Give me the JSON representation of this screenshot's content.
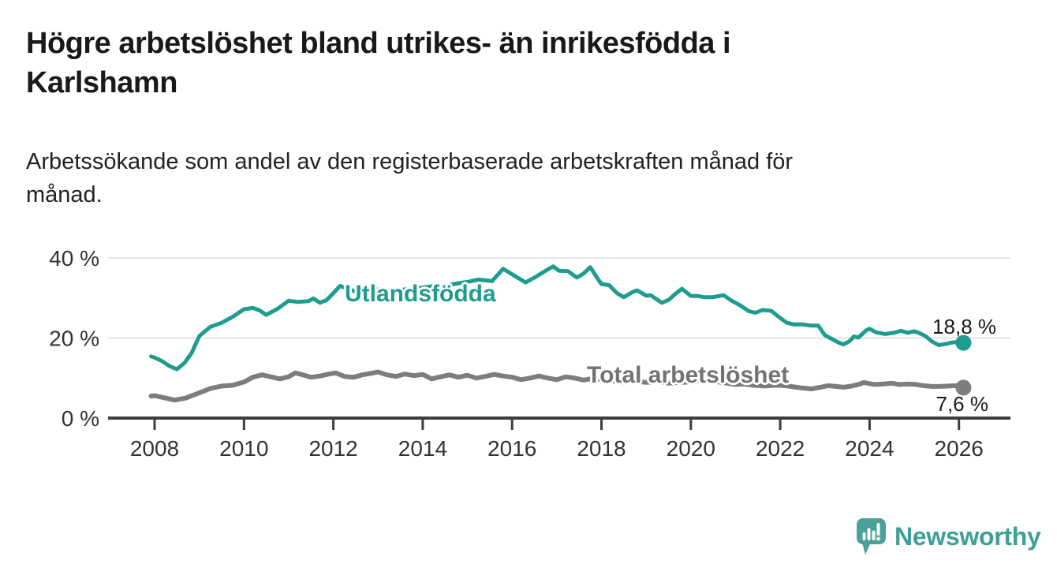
{
  "header": {
    "title_lines": [
      "Högre arbetslöshet bland utrikes- än inrikesfödda i",
      "Karlshamn"
    ],
    "subtitle_lines": [
      "Arbetssökande som andel av den registerbaserade arbetskraften månad för",
      "månad."
    ]
  },
  "chart_data": {
    "type": "line",
    "title": "Högre arbetslöshet bland utrikes- än inrikesfödda i Karlshamn",
    "subtitle": "Arbetssökande som andel av den registerbaserade arbetskraften månad för månad.",
    "x_unit": "year (monthly series)",
    "x_range": [
      2008,
      2026.1
    ],
    "ylim": [
      0,
      40
    ],
    "grid": "horizontal",
    "legend_position": "inline-labels",
    "x_ticks": [
      2008,
      2010,
      2012,
      2014,
      2016,
      2018,
      2020,
      2022,
      2024,
      2026
    ],
    "y_ticks": [
      {
        "value": 0,
        "label": "0 %"
      },
      {
        "value": 20,
        "label": "20 %"
      },
      {
        "value": 40,
        "label": "40 %"
      }
    ],
    "series": [
      {
        "name": "Utlandsfödda",
        "color": "#1d9c8f",
        "end_label": "18,8 %",
        "end_value": 18.8,
        "points": [
          [
            2007.92,
            15.4
          ],
          [
            2008.0,
            15.1
          ],
          [
            2008.17,
            14.2
          ],
          [
            2008.33,
            13.0
          ],
          [
            2008.5,
            12.2
          ],
          [
            2008.67,
            13.8
          ],
          [
            2008.83,
            16.3
          ],
          [
            2009.0,
            20.5
          ],
          [
            2009.25,
            22.8
          ],
          [
            2009.5,
            23.8
          ],
          [
            2009.75,
            25.3
          ],
          [
            2010.0,
            27.2
          ],
          [
            2010.2,
            27.5
          ],
          [
            2010.35,
            26.9
          ],
          [
            2010.5,
            25.8
          ],
          [
            2010.75,
            27.3
          ],
          [
            2011.0,
            29.3
          ],
          [
            2011.2,
            29.0
          ],
          [
            2011.45,
            29.2
          ],
          [
            2011.55,
            29.9
          ],
          [
            2011.7,
            28.8
          ],
          [
            2011.85,
            29.5
          ],
          [
            2012.0,
            31.2
          ],
          [
            2012.15,
            33.0
          ],
          [
            2012.3,
            32.4
          ],
          [
            2012.5,
            31.6
          ],
          [
            2012.75,
            31.9
          ],
          [
            2013.0,
            32.1
          ],
          [
            2013.25,
            31.6
          ],
          [
            2013.5,
            32.0
          ],
          [
            2013.75,
            32.3
          ],
          [
            2014.0,
            32.6
          ],
          [
            2014.25,
            33.0
          ],
          [
            2014.5,
            33.0
          ],
          [
            2014.75,
            33.6
          ],
          [
            2015.0,
            34.0
          ],
          [
            2015.25,
            34.6
          ],
          [
            2015.55,
            34.2
          ],
          [
            2015.8,
            37.3
          ],
          [
            2016.0,
            35.9
          ],
          [
            2016.3,
            33.9
          ],
          [
            2016.5,
            35.1
          ],
          [
            2016.75,
            36.8
          ],
          [
            2016.92,
            37.9
          ],
          [
            2017.05,
            36.8
          ],
          [
            2017.25,
            36.7
          ],
          [
            2017.45,
            35.1
          ],
          [
            2017.6,
            36.1
          ],
          [
            2017.75,
            37.7
          ],
          [
            2017.9,
            35.1
          ],
          [
            2018.0,
            33.5
          ],
          [
            2018.17,
            33.2
          ],
          [
            2018.35,
            31.2
          ],
          [
            2018.5,
            30.2
          ],
          [
            2018.7,
            31.5
          ],
          [
            2018.8,
            31.9
          ],
          [
            2019.0,
            30.6
          ],
          [
            2019.1,
            30.7
          ],
          [
            2019.35,
            28.8
          ],
          [
            2019.5,
            29.5
          ],
          [
            2019.65,
            31.0
          ],
          [
            2019.8,
            32.3
          ],
          [
            2020.0,
            30.5
          ],
          [
            2020.15,
            30.5
          ],
          [
            2020.3,
            30.2
          ],
          [
            2020.5,
            30.2
          ],
          [
            2020.73,
            30.7
          ],
          [
            2020.9,
            29.4
          ],
          [
            2021.1,
            28.2
          ],
          [
            2021.3,
            26.7
          ],
          [
            2021.45,
            26.3
          ],
          [
            2021.6,
            27.0
          ],
          [
            2021.8,
            26.8
          ],
          [
            2021.9,
            25.9
          ],
          [
            2022.0,
            25.0
          ],
          [
            2022.15,
            23.8
          ],
          [
            2022.3,
            23.4
          ],
          [
            2022.5,
            23.4
          ],
          [
            2022.7,
            23.1
          ],
          [
            2022.85,
            23.1
          ],
          [
            2023.0,
            20.7
          ],
          [
            2023.15,
            19.8
          ],
          [
            2023.3,
            18.9
          ],
          [
            2023.42,
            18.4
          ],
          [
            2023.55,
            19.2
          ],
          [
            2023.65,
            20.4
          ],
          [
            2023.75,
            20.1
          ],
          [
            2023.93,
            22.0
          ],
          [
            2024.0,
            22.3
          ],
          [
            2024.15,
            21.4
          ],
          [
            2024.35,
            21.0
          ],
          [
            2024.55,
            21.3
          ],
          [
            2024.7,
            21.8
          ],
          [
            2024.85,
            21.3
          ],
          [
            2025.0,
            21.7
          ],
          [
            2025.1,
            21.3
          ],
          [
            2025.25,
            20.5
          ],
          [
            2025.4,
            19.1
          ],
          [
            2025.55,
            18.2
          ],
          [
            2025.7,
            18.5
          ],
          [
            2025.85,
            18.9
          ],
          [
            2026.0,
            19.0
          ],
          [
            2026.1,
            18.8
          ]
        ]
      },
      {
        "name": "Total arbetslöshet",
        "color": "#7d7d7d",
        "end_label": "7,6 %",
        "end_value": 7.6,
        "points": [
          [
            2007.92,
            5.5
          ],
          [
            2008.0,
            5.6
          ],
          [
            2008.2,
            5.1
          ],
          [
            2008.45,
            4.5
          ],
          [
            2008.7,
            5.0
          ],
          [
            2009.0,
            6.3
          ],
          [
            2009.25,
            7.4
          ],
          [
            2009.5,
            8.0
          ],
          [
            2009.75,
            8.2
          ],
          [
            2010.0,
            9.0
          ],
          [
            2010.2,
            10.2
          ],
          [
            2010.4,
            10.8
          ],
          [
            2010.6,
            10.3
          ],
          [
            2010.8,
            9.8
          ],
          [
            2011.0,
            10.3
          ],
          [
            2011.15,
            11.3
          ],
          [
            2011.35,
            10.7
          ],
          [
            2011.5,
            10.2
          ],
          [
            2011.7,
            10.5
          ],
          [
            2011.9,
            11.0
          ],
          [
            2012.05,
            11.3
          ],
          [
            2012.25,
            10.4
          ],
          [
            2012.45,
            10.2
          ],
          [
            2012.65,
            10.8
          ],
          [
            2012.85,
            11.2
          ],
          [
            2013.0,
            11.5
          ],
          [
            2013.2,
            10.8
          ],
          [
            2013.4,
            10.4
          ],
          [
            2013.6,
            11.0
          ],
          [
            2013.8,
            10.6
          ],
          [
            2014.0,
            10.9
          ],
          [
            2014.2,
            9.8
          ],
          [
            2014.4,
            10.3
          ],
          [
            2014.6,
            10.8
          ],
          [
            2014.8,
            10.2
          ],
          [
            2015.0,
            10.7
          ],
          [
            2015.2,
            10.0
          ],
          [
            2015.4,
            10.4
          ],
          [
            2015.6,
            10.9
          ],
          [
            2015.8,
            10.5
          ],
          [
            2016.0,
            10.2
          ],
          [
            2016.2,
            9.6
          ],
          [
            2016.4,
            10.0
          ],
          [
            2016.6,
            10.5
          ],
          [
            2016.8,
            10.0
          ],
          [
            2017.0,
            9.6
          ],
          [
            2017.2,
            10.3
          ],
          [
            2017.4,
            10.0
          ],
          [
            2017.6,
            9.5
          ],
          [
            2017.8,
            9.9
          ],
          [
            2018.0,
            9.6
          ],
          [
            2018.25,
            9.3
          ],
          [
            2018.5,
            9.0
          ],
          [
            2018.75,
            9.2
          ],
          [
            2019.0,
            8.9
          ],
          [
            2019.25,
            9.1
          ],
          [
            2019.5,
            8.7
          ],
          [
            2019.75,
            8.9
          ],
          [
            2020.0,
            9.0
          ],
          [
            2020.25,
            9.5
          ],
          [
            2020.5,
            9.2
          ],
          [
            2020.75,
            8.8
          ],
          [
            2021.0,
            8.4
          ],
          [
            2021.2,
            8.5
          ],
          [
            2021.4,
            8.2
          ],
          [
            2021.65,
            8.0
          ],
          [
            2021.9,
            8.2
          ],
          [
            2022.1,
            8.1
          ],
          [
            2022.3,
            7.8
          ],
          [
            2022.5,
            7.5
          ],
          [
            2022.7,
            7.3
          ],
          [
            2022.9,
            7.7
          ],
          [
            2023.07,
            8.1
          ],
          [
            2023.25,
            7.9
          ],
          [
            2023.42,
            7.7
          ],
          [
            2023.6,
            8.0
          ],
          [
            2023.78,
            8.5
          ],
          [
            2023.87,
            8.9
          ],
          [
            2023.95,
            8.7
          ],
          [
            2024.1,
            8.4
          ],
          [
            2024.3,
            8.5
          ],
          [
            2024.5,
            8.7
          ],
          [
            2024.66,
            8.4
          ],
          [
            2024.85,
            8.5
          ],
          [
            2025.05,
            8.4
          ],
          [
            2025.2,
            8.1
          ],
          [
            2025.4,
            7.9
          ],
          [
            2025.55,
            7.9
          ],
          [
            2025.75,
            8.0
          ],
          [
            2025.95,
            8.1
          ],
          [
            2026.1,
            7.6
          ]
        ]
      }
    ]
  },
  "branding": {
    "name": "Newsworthy",
    "color": "#3d9f96",
    "icon": "newsworthy-speech-bubble-bar-chart-logo"
  }
}
